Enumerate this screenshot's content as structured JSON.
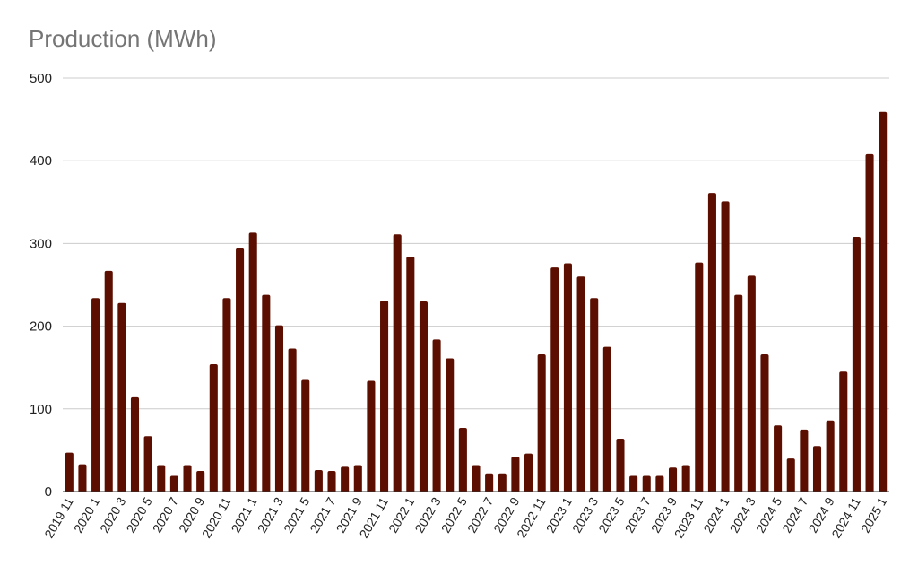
{
  "chart_data": {
    "type": "bar",
    "title": "Production (MWh)",
    "xlabel": "",
    "ylabel": "",
    "ylim": [
      0,
      500
    ],
    "yticks": [
      0,
      100,
      200,
      300,
      400,
      500
    ],
    "grid": true,
    "legend": "none",
    "bar_color": "#5c0f00",
    "categories": [
      "2019 11",
      "2019 12",
      "2020 1",
      "2020 2",
      "2020 3",
      "2020 4",
      "2020 5",
      "2020 6",
      "2020 7",
      "2020 8",
      "2020 9",
      "2020 10",
      "2020 11",
      "2020 12",
      "2021 1",
      "2021 2",
      "2021 3",
      "2021 4",
      "2021 5",
      "2021 6",
      "2021 7",
      "2021 8",
      "2021 9",
      "2021 10",
      "2021 11",
      "2021 12",
      "2022 1",
      "2022 2",
      "2022 3",
      "2022 4",
      "2022 5",
      "2022 6",
      "2022 7",
      "2022 8",
      "2022 9",
      "2022 10",
      "2022 11",
      "2022 12",
      "2023 1",
      "2023 2",
      "2023 3",
      "2023 4",
      "2023 5",
      "2023 6",
      "2023 7",
      "2023 8",
      "2023 9",
      "2023 10",
      "2023 11",
      "2023 12",
      "2024 1",
      "2024 2",
      "2024 3",
      "2024 4",
      "2024 5",
      "2024 6",
      "2024 7",
      "2024 8",
      "2024 9",
      "2024 10",
      "2024 11",
      "2024 12",
      "2025 1"
    ],
    "visible_x_labels": [
      "2019 11",
      "2020 1",
      "2020 3",
      "2020 5",
      "2020 7",
      "2020 9",
      "2020 11",
      "2021 1",
      "2021 3",
      "2021 5",
      "2021 7",
      "2021 9",
      "2021 11",
      "2022 1",
      "2022 3",
      "2022 5",
      "2022 7",
      "2022 9",
      "2022 11",
      "2023 1",
      "2023 3",
      "2023 5",
      "2023 7",
      "2023 9",
      "2023 11",
      "2024 1",
      "2024 3",
      "2024 5",
      "2024 7",
      "2024 9",
      "2024 11",
      "2025 1"
    ],
    "values": [
      47,
      33,
      234,
      267,
      228,
      114,
      67,
      32,
      19,
      32,
      25,
      154,
      234,
      294,
      313,
      238,
      201,
      173,
      135,
      26,
      25,
      30,
      32,
      134,
      231,
      311,
      284,
      230,
      184,
      161,
      77,
      32,
      22,
      22,
      42,
      46,
      166,
      271,
      276,
      260,
      234,
      175,
      64,
      19,
      19,
      19,
      29,
      32,
      277,
      361,
      351,
      238,
      261,
      166,
      80,
      40,
      75,
      55,
      86,
      145,
      308,
      408,
      459
    ]
  }
}
